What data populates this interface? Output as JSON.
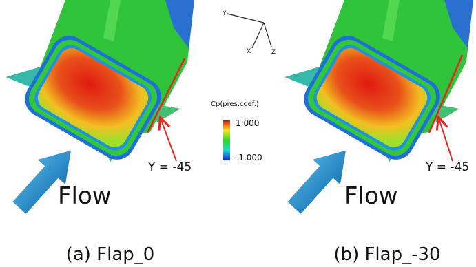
{
  "triad": {
    "y": "Y",
    "x": "X",
    "z": "Z"
  },
  "colorbar": {
    "title": "Cp(pres.coef.)",
    "max": "1.000",
    "min": "-1.000"
  },
  "panels": [
    {
      "section": "Y = -45",
      "flow": "Flow",
      "caption": "(a) Flap_0"
    },
    {
      "section": "Y = -45",
      "flow": "Flow",
      "caption": "(b) Flap_-30"
    }
  ]
}
